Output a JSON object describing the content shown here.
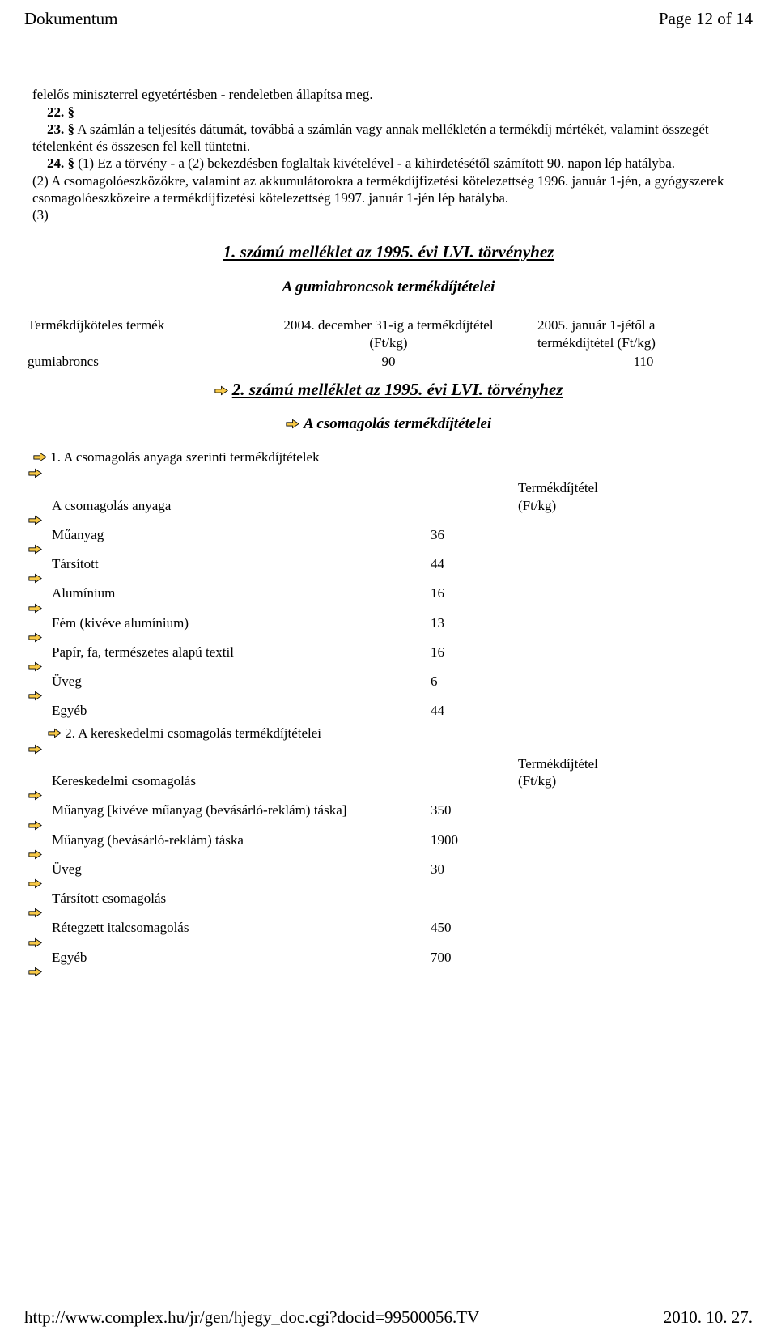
{
  "header": {
    "doc_label": "Dokumentum",
    "page_label": "Page 12 of 14"
  },
  "body": {
    "para22_intro": "felelős miniszterrel egyetértésben - rendeletben állapítsa meg.",
    "p22": "22. §",
    "p23_lead": "23. §",
    "p23_text": " A számlán a teljesítés dátumát, továbbá a számlán vagy annak mellékletén a termékdíj mértékét, valamint összegét tételenként és összesen fel kell tüntetni.",
    "p24_lead": "24. §",
    "p24_text": " (1) Ez a törvény - a (2) bekezdésben foglaltak kivételével - a kihirdetésétől számított 90. napon lép hatályba.",
    "p24_2": "(2) A csomagolóeszközökre, valamint az akkumulátorokra a termékdíjfizetési kötelezettség 1996. január 1-jén, a gyógyszerek csomagolóeszközeire a termékdíjfizetési kötelezettség 1997. január 1-jén lép hatályba.",
    "p24_3": "(3)"
  },
  "section1": {
    "title": "1. számú melléklet az 1995. évi LVI. törvényhez",
    "subtitle": "A gumiabroncsok termékdíjtételei",
    "col1_head": "Termékdíjköteles termék",
    "col2_head_l1": "2004. december 31-ig a termékdíjtétel",
    "col2_head_l2": "(Ft/kg)",
    "col3_head_l1": "2005. január 1-jétől a",
    "col3_head_l2": "termékdíjtétel (Ft/kg)",
    "row_label": "gumiabroncs",
    "row_v1": "90",
    "row_v2": "110"
  },
  "section2": {
    "title": "2. számú melléklet az 1995. évi LVI. törvényhez",
    "subtitle": "A csomagolás termékdíjtételei",
    "sub1": "1. A csomagolás anyaga szerinti termékdíjtételek",
    "head_mat": "A csomagolás anyaga",
    "head_val_l1": "Termékdíjtétel",
    "head_val_l2": "(Ft/kg)",
    "rows1": [
      {
        "label": "Műanyag",
        "value": "36"
      },
      {
        "label": "Társított",
        "value": "44"
      },
      {
        "label": "Alumínium",
        "value": "16"
      },
      {
        "label": "Fém (kivéve alumínium)",
        "value": "13"
      },
      {
        "label": "Papír, fa, természetes alapú textil",
        "value": "16"
      },
      {
        "label": "Üveg",
        "value": "6"
      },
      {
        "label": "Egyéb",
        "value": "44"
      }
    ],
    "sub2": "2. A kereskedelmi csomagolás termékdíjtételei",
    "head_com": "Kereskedelmi csomagolás",
    "rows2": [
      {
        "label": "Műanyag [kivéve műanyag (bevásárló-reklám) táska]",
        "value": "350"
      },
      {
        "label": "Műanyag (bevásárló-reklám) táska",
        "value": "1900"
      },
      {
        "label": "Üveg",
        "value": "30"
      },
      {
        "label": "Társított csomagolás",
        "value": ""
      },
      {
        "label": "Rétegzett italcsomagolás",
        "value": "450"
      },
      {
        "label": "Egyéb",
        "value": "700"
      }
    ]
  },
  "footer": {
    "url": "http://www.complex.hu/jr/gen/hjegy_doc.cgi?docid=99500056.TV",
    "date": "2010. 10. 27."
  },
  "icon_colors": {
    "fill": "#f7c948",
    "stroke": "#000000"
  }
}
